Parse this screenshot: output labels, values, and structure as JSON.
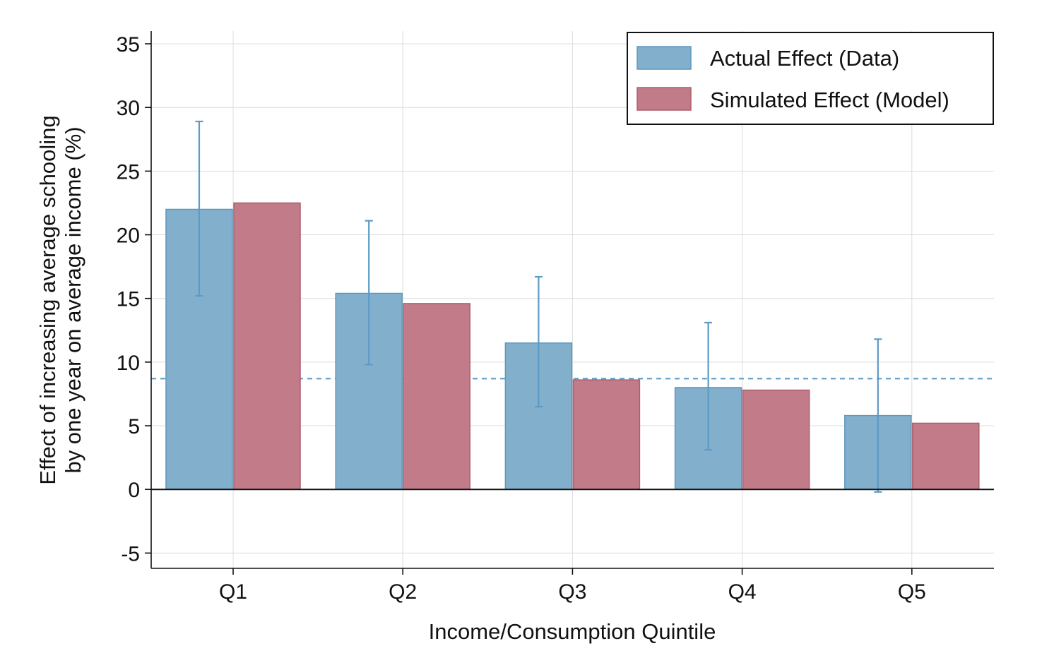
{
  "chart_data": {
    "type": "bar",
    "title": "",
    "xlabel": "Income/Consumption Quintile",
    "ylabel_lines": [
      "Effect of increasing average schooling",
      "by one year on average income (%)"
    ],
    "categories": [
      "Q1",
      "Q2",
      "Q3",
      "Q4",
      "Q5"
    ],
    "ylim": [
      -6.2,
      36
    ],
    "yticks": [
      -5,
      0,
      5,
      10,
      15,
      20,
      25,
      30,
      35
    ],
    "ytick_labels": [
      "-5",
      "0",
      "5",
      "10",
      "15",
      "20",
      "25",
      "30",
      "35"
    ],
    "grid": true,
    "reference_line": {
      "value": 8.7,
      "style": "dashed",
      "color": "#5d9ac6"
    },
    "legend_position": "top-right",
    "series": [
      {
        "name": "Actual Effect (Data)",
        "color": "#82b0cc",
        "edge_color": "#5f97bd",
        "values": [
          22.0,
          15.4,
          11.5,
          8.0,
          5.8
        ],
        "ci_low": [
          15.2,
          9.8,
          6.5,
          3.1,
          -0.2
        ],
        "ci_high": [
          28.9,
          21.1,
          16.7,
          13.1,
          11.8
        ]
      },
      {
        "name": "Simulated Effect (Model)",
        "color": "#c27b88",
        "edge_color": "#ae5f6e",
        "values": [
          22.5,
          14.6,
          8.6,
          7.8,
          5.2
        ]
      }
    ],
    "errorbar_color": "#5d9ac6"
  }
}
